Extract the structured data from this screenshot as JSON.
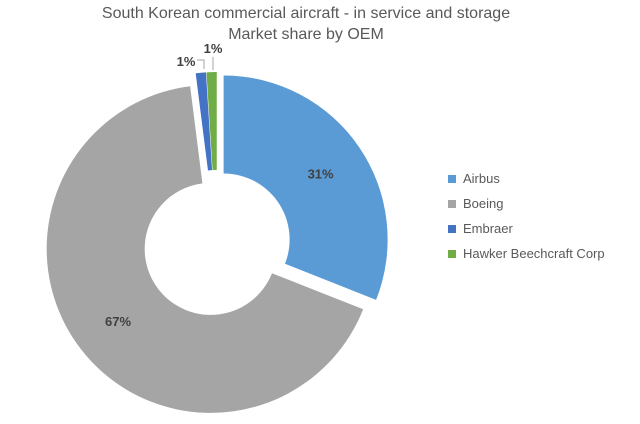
{
  "title": {
    "line1": "South Korean commercial aircraft - in service and storage",
    "line2": "Market share by OEM"
  },
  "chart_data": {
    "type": "pie",
    "subtype": "exploded-doughnut",
    "title": "South Korean commercial aircraft - in service and storage Market share by OEM",
    "categories": [
      "Airbus",
      "Boeing",
      "Embraer",
      "Hawker Beechcraft Corp"
    ],
    "values": [
      31,
      67,
      1,
      1
    ],
    "value_unit": "%",
    "data_labels": [
      "31%",
      "67%",
      "1%",
      "1%"
    ],
    "colors": [
      "#5B9BD5",
      "#A5A5A5",
      "#4472C4",
      "#70AD47"
    ],
    "legend_position": "right",
    "start_angle_deg": 0,
    "direction": "clockwise",
    "donut_hole": true,
    "text_colors": {
      "title": "#595959",
      "legend": "#595959",
      "data_labels": "#404040"
    },
    "leader_line_color": "#A6A6A6"
  },
  "legend": {
    "items": [
      {
        "label": "Airbus",
        "color": "#5B9BD5"
      },
      {
        "label": "Boeing",
        "color": "#A5A5A5"
      },
      {
        "label": "Embraer",
        "color": "#4472C4"
      },
      {
        "label": "Hawker Beechcraft Corp",
        "color": "#70AD47"
      }
    ]
  }
}
